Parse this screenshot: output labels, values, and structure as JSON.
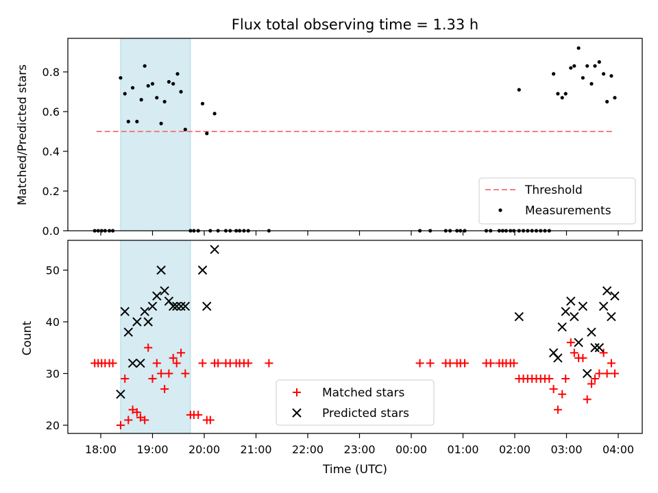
{
  "title": "Flux total observing time = 1.33 h",
  "colors": {
    "threshold": "#f08080",
    "measurement": "#000000",
    "matched": "#ff0000",
    "predicted": "#000000",
    "span": "#add8e6"
  },
  "chart_data": [
    {
      "type": "scatter",
      "ylabel": "Matched/Predicted stars",
      "ylim": [
        0,
        0.96
      ],
      "yticks": [
        "0.0",
        "0.2",
        "0.4",
        "0.6",
        "0.8"
      ],
      "x_axis": "time (UTC), hours from 18:00",
      "shaded_span": [
        "18:23",
        "19:44"
      ],
      "legend": {
        "position": "lower-right",
        "entries": [
          "Threshold",
          "Measurements"
        ]
      },
      "threshold": {
        "name": "Threshold",
        "value": 0.5,
        "x_range": [
          "17:55",
          "03:55"
        ]
      },
      "series": [
        {
          "name": "Measurements",
          "points": [
            [
              "17:53",
              0
            ],
            [
              "17:57",
              0
            ],
            [
              "18:01",
              0
            ],
            [
              "18:05",
              0
            ],
            [
              "18:10",
              0
            ],
            [
              "18:14",
              0
            ],
            [
              "18:23",
              0.77
            ],
            [
              "18:28",
              0.69
            ],
            [
              "18:32",
              0.55
            ],
            [
              "18:37",
              0.72
            ],
            [
              "18:42",
              0.55
            ],
            [
              "18:47",
              0.66
            ],
            [
              "18:51",
              0.83
            ],
            [
              "18:55",
              0.73
            ],
            [
              "19:00",
              0.74
            ],
            [
              "19:05",
              0.67
            ],
            [
              "19:10",
              0.54
            ],
            [
              "19:14",
              0.65
            ],
            [
              "19:19",
              0.75
            ],
            [
              "19:24",
              0.74
            ],
            [
              "19:29",
              0.79
            ],
            [
              "19:33",
              0.7
            ],
            [
              "19:38",
              0.51
            ],
            [
              "19:44",
              0
            ],
            [
              "19:48",
              0
            ],
            [
              "19:53",
              0
            ],
            [
              "19:58",
              0.64
            ],
            [
              "20:03",
              0.49
            ],
            [
              "20:07",
              0
            ],
            [
              "20:12",
              0.59
            ],
            [
              "20:16",
              0
            ],
            [
              "20:25",
              0
            ],
            [
              "20:30",
              0
            ],
            [
              "20:37",
              0
            ],
            [
              "20:41",
              0
            ],
            [
              "20:46",
              0
            ],
            [
              "20:51",
              0
            ],
            [
              "21:15",
              0
            ],
            [
              "00:10",
              0
            ],
            [
              "00:22",
              0
            ],
            [
              "00:40",
              0
            ],
            [
              "00:45",
              0
            ],
            [
              "00:53",
              0
            ],
            [
              "00:57",
              0
            ],
            [
              "01:02",
              0
            ],
            [
              "01:27",
              0
            ],
            [
              "01:32",
              0
            ],
            [
              "01:42",
              0
            ],
            [
              "01:46",
              0
            ],
            [
              "01:50",
              0
            ],
            [
              "01:55",
              0
            ],
            [
              "01:59",
              0
            ],
            [
              "02:05",
              0.71
            ],
            [
              "02:05",
              0
            ],
            [
              "02:10",
              0
            ],
            [
              "02:15",
              0
            ],
            [
              "02:20",
              0
            ],
            [
              "02:25",
              0
            ],
            [
              "02:30",
              0
            ],
            [
              "02:35",
              0
            ],
            [
              "02:40",
              0
            ],
            [
              "02:45",
              0.79
            ],
            [
              "02:50",
              0.69
            ],
            [
              "02:55",
              0.67
            ],
            [
              "02:59",
              0.69
            ],
            [
              "03:05",
              0.82
            ],
            [
              "03:09",
              0.83
            ],
            [
              "03:14",
              0.92
            ],
            [
              "03:19",
              0.77
            ],
            [
              "03:24",
              0.83
            ],
            [
              "03:29",
              0.74
            ],
            [
              "03:33",
              0.83
            ],
            [
              "03:38",
              0.85
            ],
            [
              "03:43",
              0.79
            ],
            [
              "03:47",
              0.65
            ],
            [
              "03:52",
              0.78
            ],
            [
              "03:56",
              0.67
            ]
          ]
        }
      ]
    },
    {
      "type": "scatter",
      "ylabel": "Count",
      "xlabel": "Time (UTC)",
      "ylim": [
        18.3,
        55.7
      ],
      "yticks": [
        "20",
        "30",
        "40",
        "50"
      ],
      "xticks": [
        "18:00",
        "19:00",
        "20:00",
        "21:00",
        "22:00",
        "23:00",
        "00:00",
        "01:00",
        "02:00",
        "03:00",
        "04:00"
      ],
      "shaded_span": [
        "18:23",
        "19:44"
      ],
      "legend": {
        "position": "lower-center",
        "entries": [
          "Matched stars",
          "Predicted stars"
        ]
      },
      "series": [
        {
          "name": "Matched stars",
          "marker": "+",
          "points": [
            [
              "17:53",
              32
            ],
            [
              "17:57",
              32
            ],
            [
              "18:01",
              32
            ],
            [
              "18:05",
              32
            ],
            [
              "18:10",
              32
            ],
            [
              "18:14",
              32
            ],
            [
              "18:23",
              20
            ],
            [
              "18:28",
              29
            ],
            [
              "18:32",
              21
            ],
            [
              "18:37",
              23
            ],
            [
              "18:42",
              22.5
            ],
            [
              "18:46",
              21.5
            ],
            [
              "18:51",
              21
            ],
            [
              "18:55",
              35
            ],
            [
              "19:00",
              29
            ],
            [
              "19:05",
              32
            ],
            [
              "19:10",
              30
            ],
            [
              "19:14",
              27
            ],
            [
              "19:19",
              30
            ],
            [
              "19:24",
              33
            ],
            [
              "19:28",
              32
            ],
            [
              "19:33",
              34
            ],
            [
              "19:38",
              30
            ],
            [
              "19:44",
              22
            ],
            [
              "19:48",
              22
            ],
            [
              "19:53",
              22
            ],
            [
              "19:58",
              32
            ],
            [
              "20:03",
              21
            ],
            [
              "20:07",
              21
            ],
            [
              "20:12",
              32
            ],
            [
              "20:16",
              32
            ],
            [
              "20:25",
              32
            ],
            [
              "20:30",
              32
            ],
            [
              "20:37",
              32
            ],
            [
              "20:41",
              32
            ],
            [
              "20:46",
              32
            ],
            [
              "20:51",
              32
            ],
            [
              "21:15",
              32
            ],
            [
              "00:10",
              32
            ],
            [
              "00:22",
              32
            ],
            [
              "00:40",
              32
            ],
            [
              "00:45",
              32
            ],
            [
              "00:53",
              32
            ],
            [
              "00:57",
              32
            ],
            [
              "01:02",
              32
            ],
            [
              "01:27",
              32
            ],
            [
              "01:32",
              32
            ],
            [
              "01:42",
              32
            ],
            [
              "01:46",
              32
            ],
            [
              "01:50",
              32
            ],
            [
              "01:55",
              32
            ],
            [
              "01:59",
              32
            ],
            [
              "02:05",
              29
            ],
            [
              "02:10",
              29
            ],
            [
              "02:15",
              29
            ],
            [
              "02:20",
              29
            ],
            [
              "02:25",
              29
            ],
            [
              "02:30",
              29
            ],
            [
              "02:35",
              29
            ],
            [
              "02:40",
              29
            ],
            [
              "02:45",
              27
            ],
            [
              "02:50",
              23
            ],
            [
              "02:55",
              26
            ],
            [
              "02:59",
              29
            ],
            [
              "03:05",
              36
            ],
            [
              "03:09",
              34
            ],
            [
              "03:14",
              33
            ],
            [
              "03:19",
              33
            ],
            [
              "03:24",
              25
            ],
            [
              "03:29",
              28
            ],
            [
              "03:33",
              29
            ],
            [
              "03:38",
              30
            ],
            [
              "03:43",
              34
            ],
            [
              "03:47",
              30
            ],
            [
              "03:52",
              32
            ],
            [
              "03:56",
              30
            ]
          ]
        },
        {
          "name": "Predicted stars",
          "marker": "x",
          "points": [
            [
              "18:23",
              26
            ],
            [
              "18:28",
              42
            ],
            [
              "18:32",
              38
            ],
            [
              "18:37",
              32
            ],
            [
              "18:42",
              40
            ],
            [
              "18:46",
              32
            ],
            [
              "18:51",
              42
            ],
            [
              "18:55",
              40
            ],
            [
              "19:00",
              43
            ],
            [
              "19:05",
              45
            ],
            [
              "19:10",
              50
            ],
            [
              "19:14",
              46
            ],
            [
              "19:19",
              44
            ],
            [
              "19:24",
              43
            ],
            [
              "19:28",
              43
            ],
            [
              "19:33",
              43
            ],
            [
              "19:38",
              43
            ],
            [
              "19:58",
              50
            ],
            [
              "20:03",
              43
            ],
            [
              "20:12",
              54
            ],
            [
              "02:05",
              41
            ],
            [
              "02:45",
              34
            ],
            [
              "02:50",
              33
            ],
            [
              "02:55",
              39
            ],
            [
              "02:59",
              42
            ],
            [
              "03:05",
              44
            ],
            [
              "03:09",
              41
            ],
            [
              "03:14",
              36
            ],
            [
              "03:19",
              43
            ],
            [
              "03:24",
              30
            ],
            [
              "03:29",
              38
            ],
            [
              "03:33",
              35
            ],
            [
              "03:38",
              35
            ],
            [
              "03:43",
              43
            ],
            [
              "03:47",
              46
            ],
            [
              "03:52",
              41
            ],
            [
              "03:56",
              45
            ]
          ]
        }
      ]
    }
  ]
}
